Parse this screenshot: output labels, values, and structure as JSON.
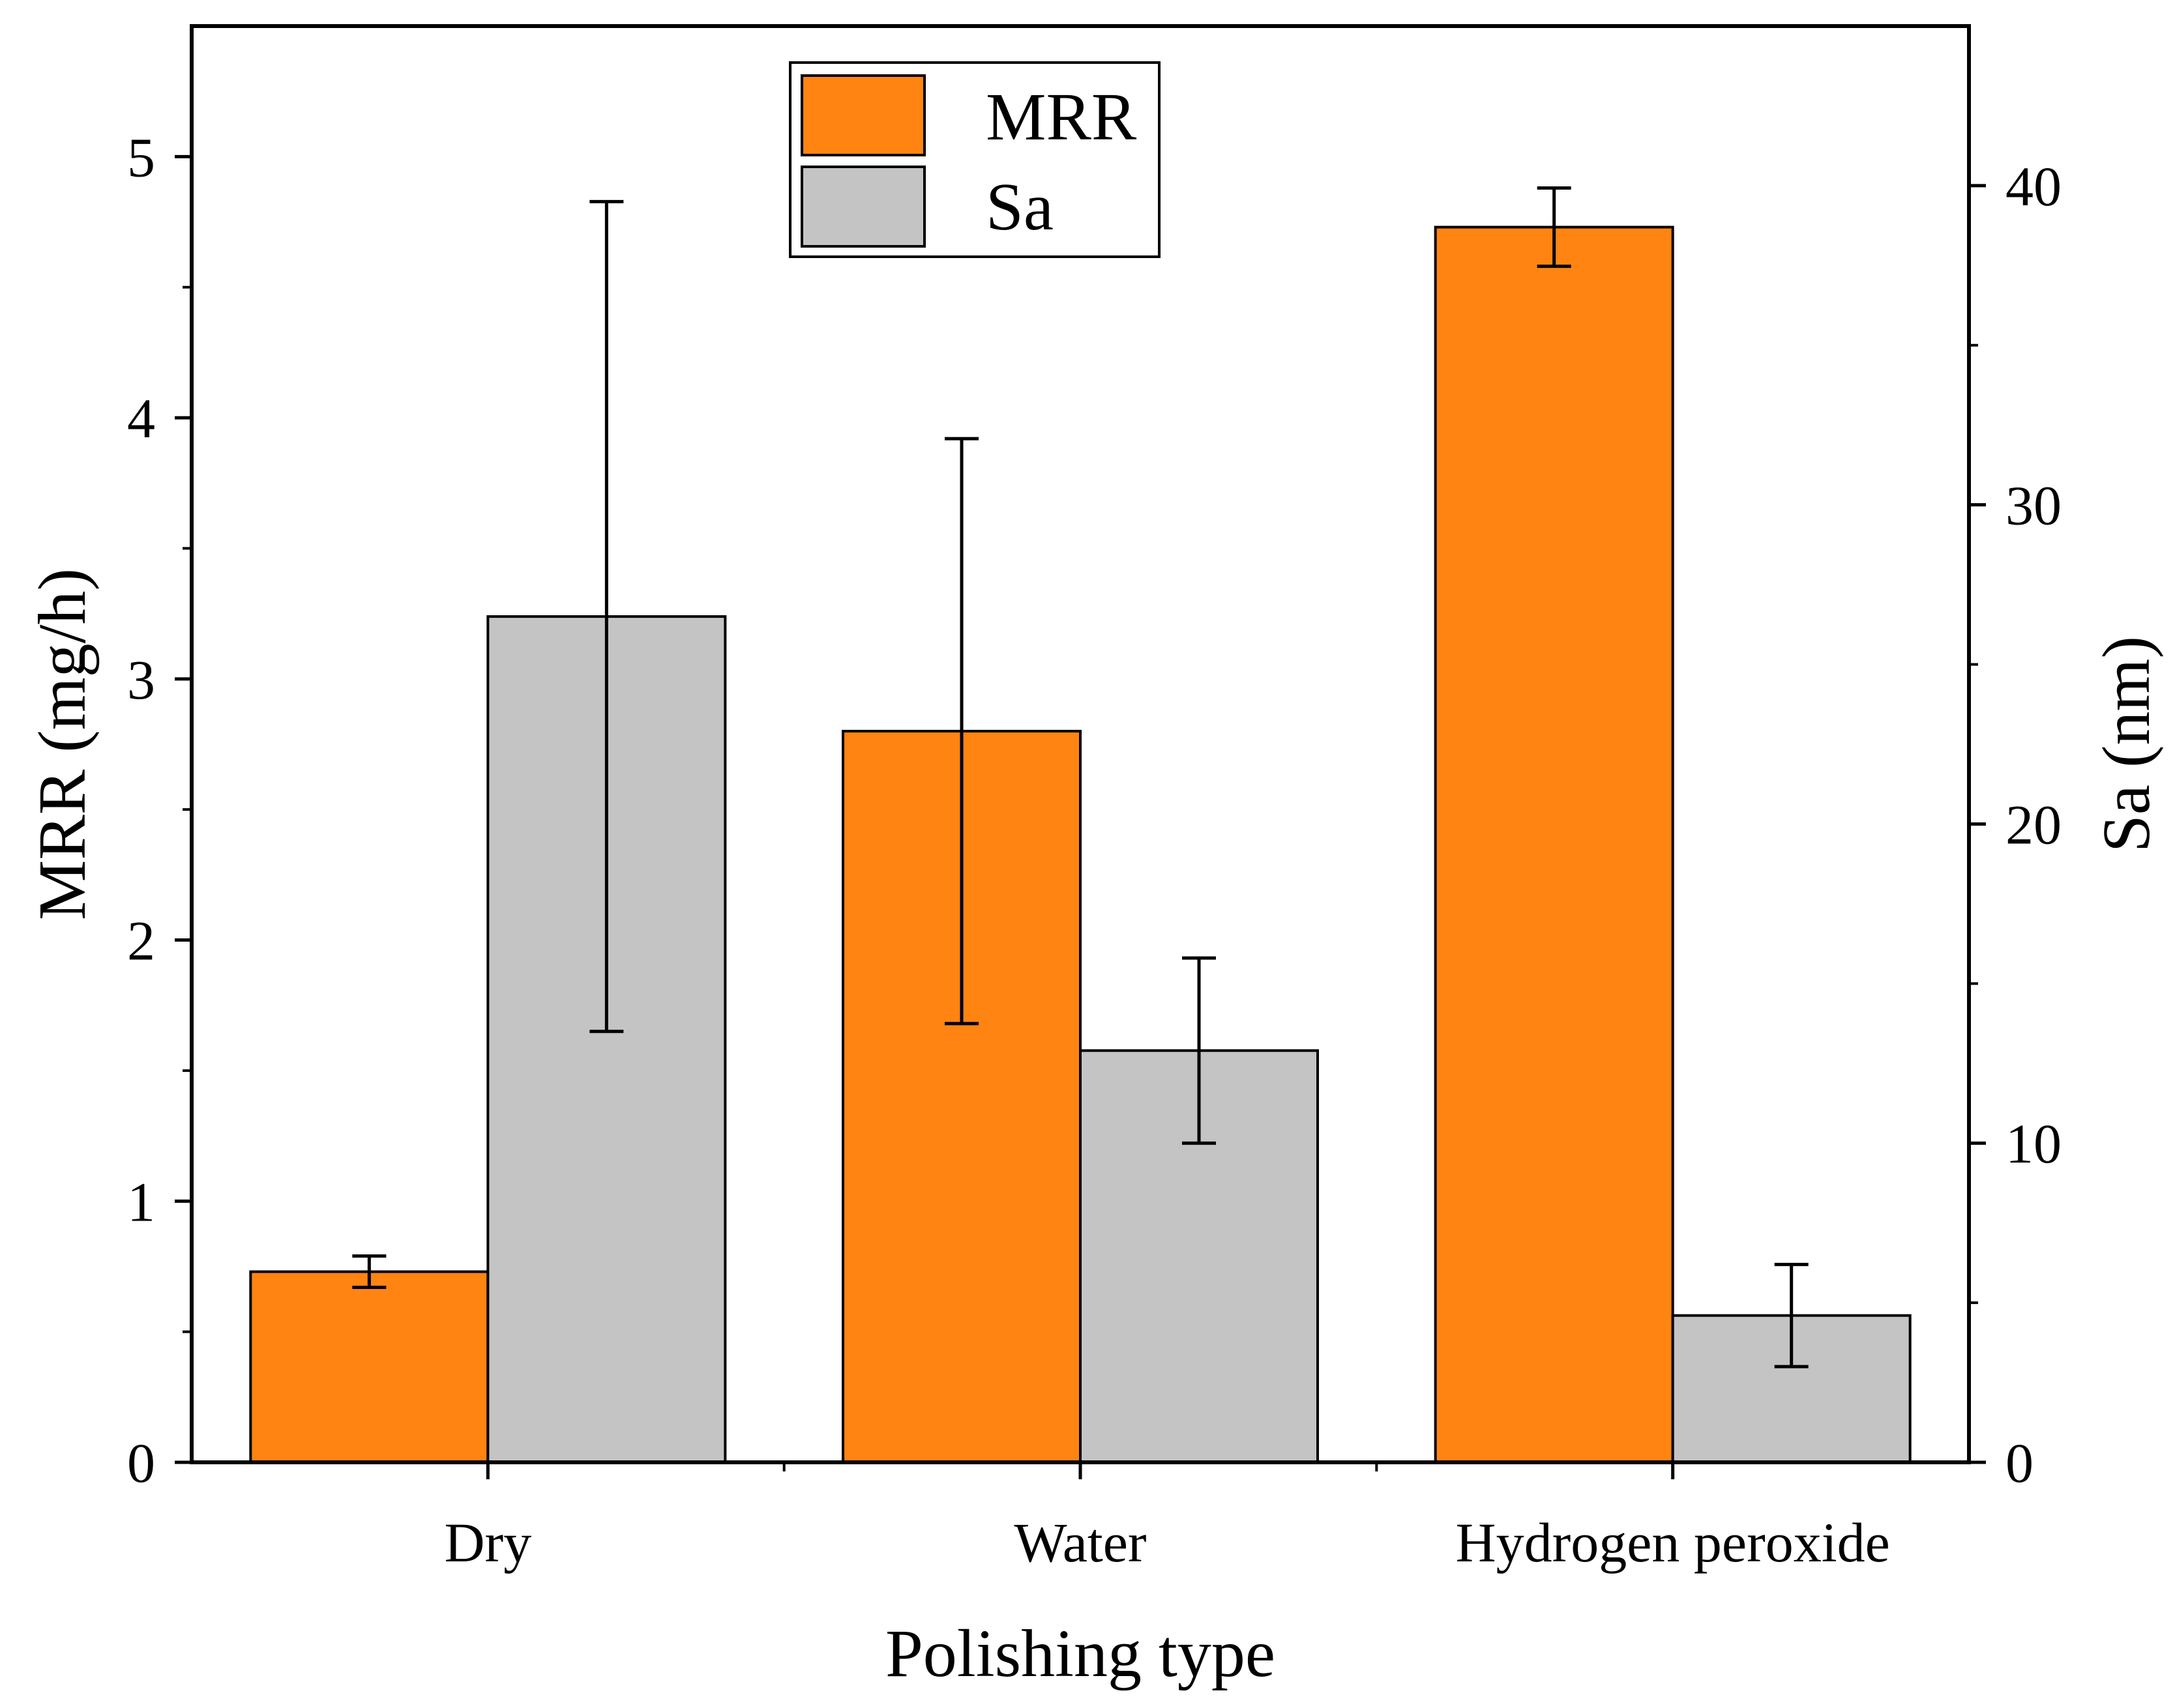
{
  "chart_data": {
    "type": "bar",
    "categories": [
      "Dry",
      "Water",
      "Hydrogen peroxide"
    ],
    "xlabel": "Polishing type",
    "ylabel": "MRR (mg/h)",
    "y2label": "Sa (nm)",
    "ylim": [
      0,
      5.5
    ],
    "y2lim": [
      0,
      45
    ],
    "yticks": [
      0,
      1,
      2,
      3,
      4,
      5
    ],
    "y2ticks": [
      0,
      10,
      20,
      30,
      40
    ],
    "grid": false,
    "legend_position": "top-center",
    "series": [
      {
        "name": "MRR",
        "axis": "left",
        "color": "#ff8411",
        "values": [
          0.73,
          2.8,
          4.73
        ],
        "errors": [
          0.06,
          1.12,
          0.15
        ]
      },
      {
        "name": "Sa",
        "axis": "right",
        "color": "#c4c4c4",
        "values": [
          26.5,
          12.9,
          4.6
        ],
        "errors": [
          13.0,
          2.9,
          1.6
        ]
      }
    ]
  }
}
